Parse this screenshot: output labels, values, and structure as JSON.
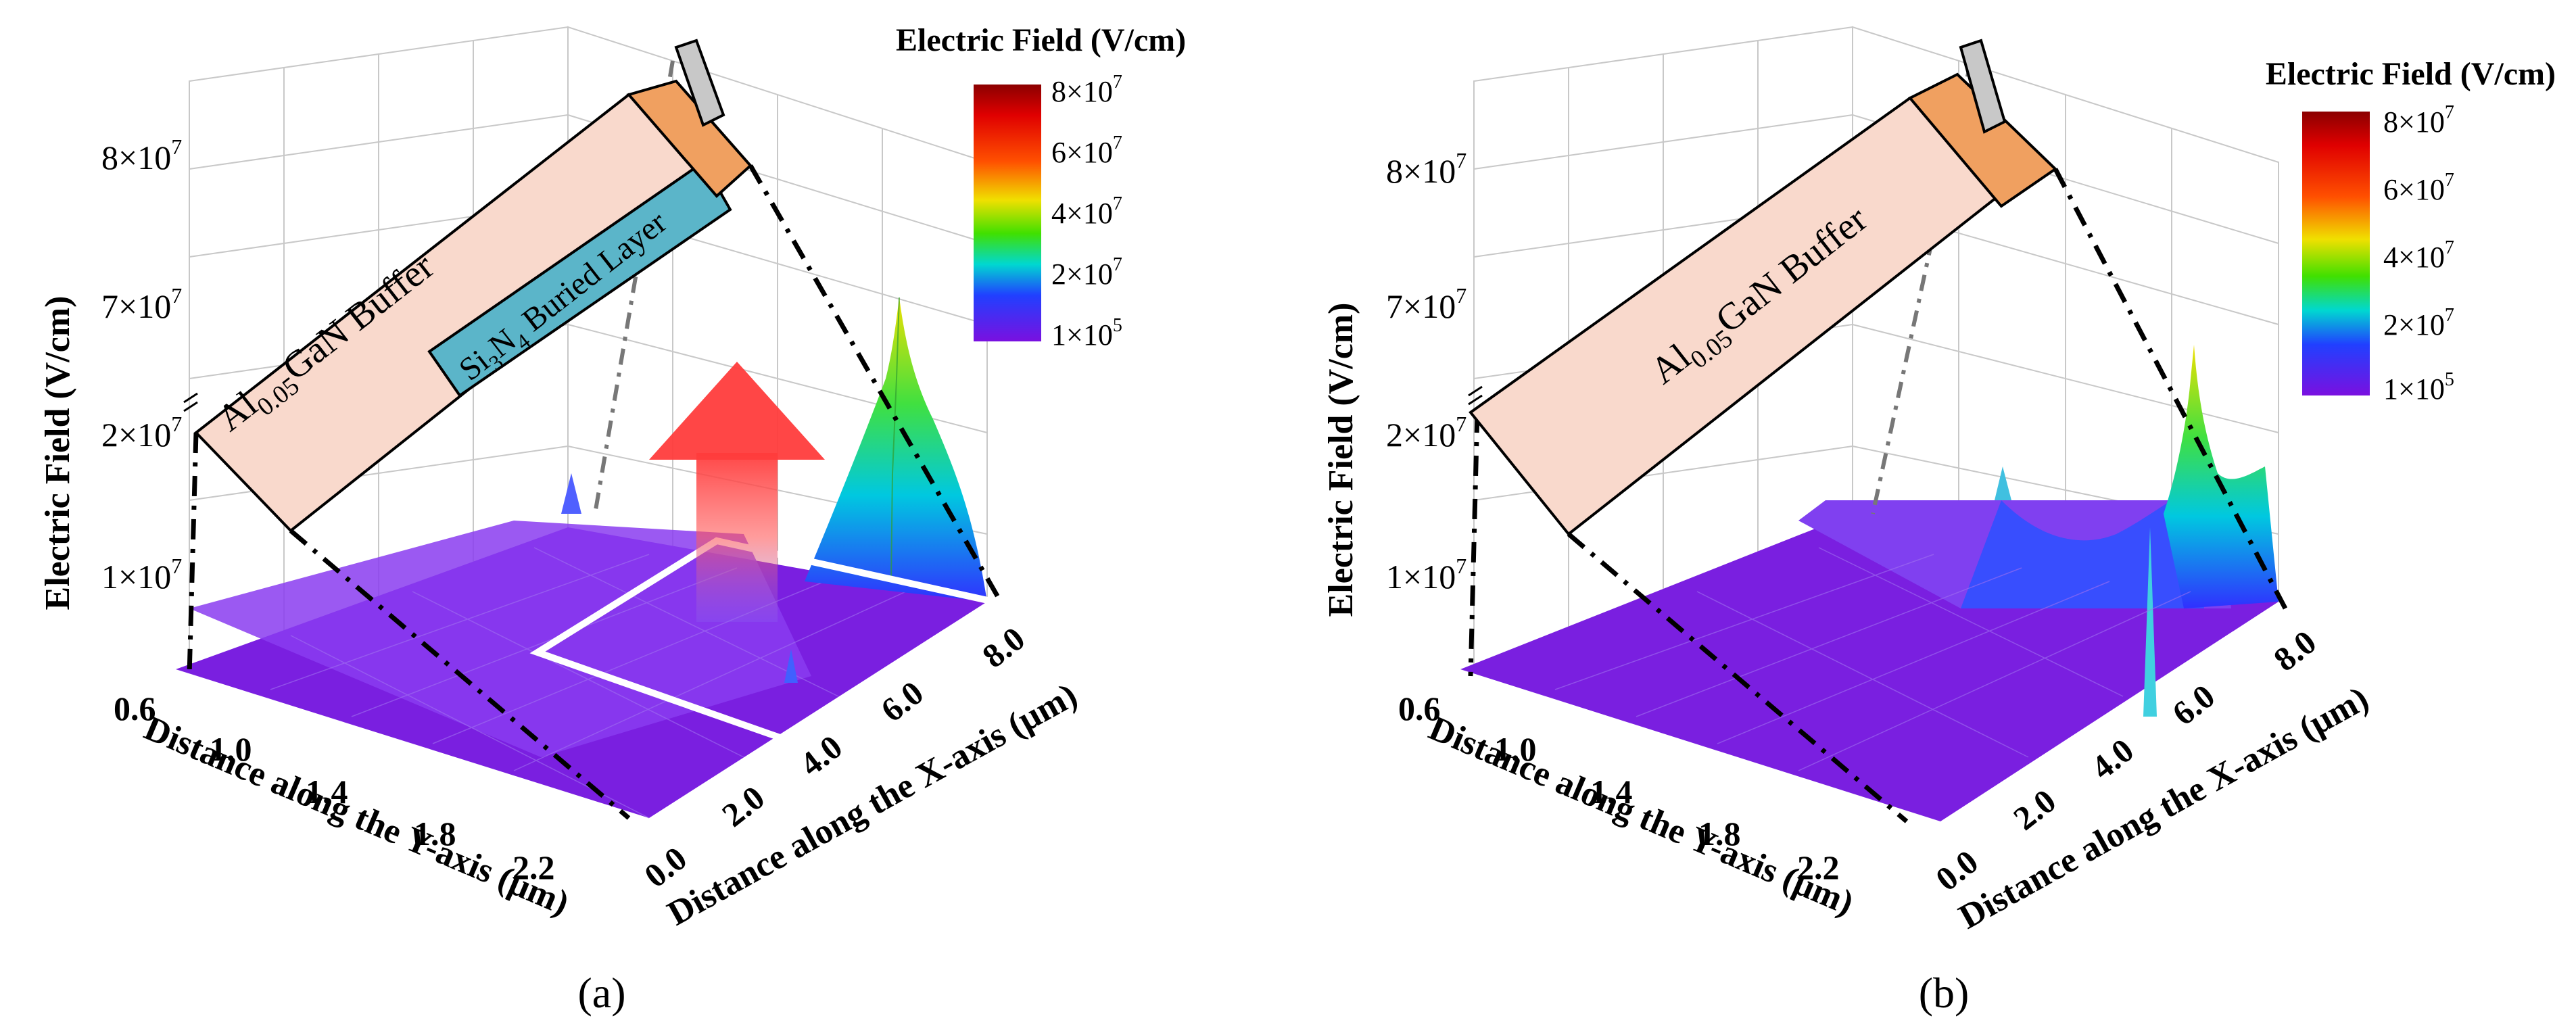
{
  "chart_data": [
    {
      "type": "surface",
      "panel": "a",
      "panel_label": "(a)",
      "z_axis": {
        "label": "Electric Field (V/cm)",
        "ticks": [
          "1×10",
          "2×10",
          "7×10",
          "8×10"
        ],
        "tick_exp": [
          "7",
          "7",
          "7",
          "7"
        ],
        "break": true
      },
      "y_axis": {
        "label": "Distance along the Y-axis (μm)",
        "ticks": [
          "0.6",
          "1.0",
          "1.4",
          "1.8",
          "2.2"
        ]
      },
      "x_axis": {
        "label": "Distance along the X-axis (μm)",
        "ticks": [
          "0.0",
          "2.0",
          "4.0",
          "6.0",
          "8.0"
        ]
      },
      "colorbar": {
        "title": "Electric Field (V/cm)",
        "labels": [
          "8×10",
          "6×10",
          "4×10",
          "2×10",
          "1×10"
        ],
        "label_exp": [
          "7",
          "7",
          "7",
          "7",
          "5"
        ]
      },
      "inset": {
        "buffer_label": "Al",
        "buffer_sub": "0.05",
        "buffer_rest": "GaN Buffer",
        "buried_si": "Si",
        "buried_sub1": "3",
        "buried_n": "N",
        "buried_sub2": "4",
        "buried_rest": " Buried Layer"
      },
      "annotations": [
        "red upward arrow",
        "white rectangle highlighting buried-layer region"
      ]
    },
    {
      "type": "surface",
      "panel": "b",
      "panel_label": "(b)",
      "z_axis": {
        "label": "Electric Field (V/cm)",
        "ticks": [
          "1×10",
          "2×10",
          "7×10",
          "8×10"
        ],
        "tick_exp": [
          "7",
          "7",
          "7",
          "7"
        ],
        "break": true
      },
      "y_axis": {
        "label": "Distance along the Y-axis (μm)",
        "ticks": [
          "0.6",
          "1.0",
          "1.4",
          "1.8",
          "2.2"
        ]
      },
      "x_axis": {
        "label": "Distance along the X-axis (μm)",
        "ticks": [
          "0.0",
          "2.0",
          "4.0",
          "6.0",
          "8.0"
        ]
      },
      "colorbar": {
        "title": "Electric Field (V/cm)",
        "labels": [
          "8×10",
          "6×10",
          "4×10",
          "2×10",
          "1×10"
        ],
        "label_exp": [
          "7",
          "7",
          "7",
          "7",
          "5"
        ]
      },
      "inset": {
        "buffer_label": "Al",
        "buffer_sub": "0.05",
        "buffer_rest": "GaN Buffer"
      }
    }
  ],
  "colors": {
    "buffer_fill": "#f9d9cc",
    "buried_fill": "#5bb5c9",
    "electrode_fill": "#f0a060",
    "gate_fill": "#c8c8c8",
    "surface_base": "#7a1fe0",
    "arrow": "#ff4040"
  }
}
